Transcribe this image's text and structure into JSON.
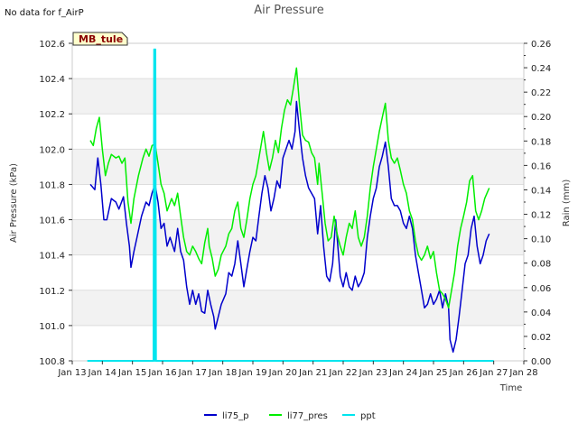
{
  "note": "No data for f_AirP",
  "station_label": "MB_tule",
  "chart_data": {
    "type": "line",
    "title": "Air Pressure",
    "xlabel": "Time",
    "ylabel": "Air Pressure (kPa)",
    "y2label": "Rain (mm)",
    "x_ticks": [
      "Jan 13",
      "Jan 14",
      "Jan 15",
      "Jan 16",
      "Jan 17",
      "Jan 18",
      "Jan 19",
      "Jan 20",
      "Jan 21",
      "Jan 22",
      "Jan 23",
      "Jan 24",
      "Jan 25",
      "Jan 26",
      "Jan 27",
      "Jan 28"
    ],
    "xlim": [
      13,
      28
    ],
    "ylim": [
      100.8,
      102.6
    ],
    "y_ticks": [
      "100.8",
      "101.0",
      "101.2",
      "101.4",
      "101.6",
      "101.8",
      "102.0",
      "102.2",
      "102.4",
      "102.6"
    ],
    "y2lim": [
      0,
      0.26
    ],
    "y2_ticks": [
      "0.00",
      "0.02",
      "0.04",
      "0.06",
      "0.08",
      "0.10",
      "0.12",
      "0.14",
      "0.16",
      "0.18",
      "0.20",
      "0.22",
      "0.24",
      "0.26"
    ],
    "grid": true,
    "legend_position": "bottom-center",
    "series": [
      {
        "name": "li75_p",
        "color": "#0000cc",
        "axis": "left",
        "points": [
          [
            13.6,
            101.8
          ],
          [
            13.75,
            101.77
          ],
          [
            13.85,
            101.95
          ],
          [
            13.95,
            101.8
          ],
          [
            14.05,
            101.6
          ],
          [
            14.15,
            101.6
          ],
          [
            14.3,
            101.72
          ],
          [
            14.45,
            101.7
          ],
          [
            14.55,
            101.66
          ],
          [
            14.7,
            101.73
          ],
          [
            14.8,
            101.58
          ],
          [
            14.9,
            101.45
          ],
          [
            14.95,
            101.33
          ],
          [
            15.05,
            101.42
          ],
          [
            15.15,
            101.5
          ],
          [
            15.3,
            101.62
          ],
          [
            15.45,
            101.7
          ],
          [
            15.55,
            101.68
          ],
          [
            15.65,
            101.75
          ],
          [
            15.75,
            101.8
          ],
          [
            15.85,
            101.7
          ],
          [
            15.95,
            101.55
          ],
          [
            16.05,
            101.58
          ],
          [
            16.15,
            101.45
          ],
          [
            16.25,
            101.5
          ],
          [
            16.4,
            101.42
          ],
          [
            16.5,
            101.55
          ],
          [
            16.6,
            101.42
          ],
          [
            16.7,
            101.37
          ],
          [
            16.8,
            101.22
          ],
          [
            16.9,
            101.12
          ],
          [
            17.0,
            101.2
          ],
          [
            17.1,
            101.12
          ],
          [
            17.2,
            101.18
          ],
          [
            17.3,
            101.08
          ],
          [
            17.4,
            101.07
          ],
          [
            17.5,
            101.2
          ],
          [
            17.6,
            101.12
          ],
          [
            17.7,
            101.05
          ],
          [
            17.75,
            100.98
          ],
          [
            17.85,
            101.05
          ],
          [
            17.95,
            101.12
          ],
          [
            18.1,
            101.18
          ],
          [
            18.2,
            101.3
          ],
          [
            18.3,
            101.28
          ],
          [
            18.4,
            101.35
          ],
          [
            18.5,
            101.48
          ],
          [
            18.6,
            101.35
          ],
          [
            18.7,
            101.22
          ],
          [
            18.8,
            101.32
          ],
          [
            18.9,
            101.42
          ],
          [
            19.0,
            101.5
          ],
          [
            19.1,
            101.48
          ],
          [
            19.2,
            101.62
          ],
          [
            19.3,
            101.75
          ],
          [
            19.4,
            101.85
          ],
          [
            19.5,
            101.78
          ],
          [
            19.6,
            101.65
          ],
          [
            19.7,
            101.72
          ],
          [
            19.8,
            101.82
          ],
          [
            19.9,
            101.78
          ],
          [
            20.0,
            101.95
          ],
          [
            20.1,
            102.0
          ],
          [
            20.2,
            102.05
          ],
          [
            20.3,
            102.0
          ],
          [
            20.4,
            102.1
          ],
          [
            20.45,
            102.27
          ],
          [
            20.55,
            102.1
          ],
          [
            20.65,
            101.95
          ],
          [
            20.75,
            101.85
          ],
          [
            20.85,
            101.78
          ],
          [
            20.95,
            101.75
          ],
          [
            21.05,
            101.72
          ],
          [
            21.15,
            101.52
          ],
          [
            21.25,
            101.68
          ],
          [
            21.35,
            101.45
          ],
          [
            21.45,
            101.28
          ],
          [
            21.55,
            101.25
          ],
          [
            21.65,
            101.35
          ],
          [
            21.75,
            101.6
          ],
          [
            21.8,
            101.5
          ],
          [
            21.9,
            101.28
          ],
          [
            22.0,
            101.22
          ],
          [
            22.1,
            101.3
          ],
          [
            22.2,
            101.22
          ],
          [
            22.3,
            101.2
          ],
          [
            22.4,
            101.28
          ],
          [
            22.5,
            101.22
          ],
          [
            22.6,
            101.25
          ],
          [
            22.7,
            101.3
          ],
          [
            22.8,
            101.5
          ],
          [
            22.9,
            101.62
          ],
          [
            23.0,
            101.72
          ],
          [
            23.1,
            101.78
          ],
          [
            23.2,
            101.9
          ],
          [
            23.3,
            101.96
          ],
          [
            23.4,
            102.04
          ],
          [
            23.5,
            101.9
          ],
          [
            23.6,
            101.72
          ],
          [
            23.7,
            101.68
          ],
          [
            23.8,
            101.68
          ],
          [
            23.9,
            101.65
          ],
          [
            24.0,
            101.58
          ],
          [
            24.1,
            101.55
          ],
          [
            24.2,
            101.62
          ],
          [
            24.3,
            101.55
          ],
          [
            24.4,
            101.4
          ],
          [
            24.5,
            101.3
          ],
          [
            24.6,
            101.2
          ],
          [
            24.7,
            101.1
          ],
          [
            24.8,
            101.12
          ],
          [
            24.9,
            101.18
          ],
          [
            25.0,
            101.12
          ],
          [
            25.1,
            101.15
          ],
          [
            25.2,
            101.2
          ],
          [
            25.3,
            101.1
          ],
          [
            25.4,
            101.18
          ],
          [
            25.5,
            101.1
          ],
          [
            25.55,
            100.92
          ],
          [
            25.65,
            100.85
          ],
          [
            25.75,
            100.92
          ],
          [
            25.85,
            101.05
          ],
          [
            25.95,
            101.2
          ],
          [
            26.05,
            101.35
          ],
          [
            26.15,
            101.4
          ],
          [
            26.25,
            101.55
          ],
          [
            26.35,
            101.62
          ],
          [
            26.45,
            101.45
          ],
          [
            26.55,
            101.35
          ],
          [
            26.65,
            101.4
          ],
          [
            26.75,
            101.48
          ],
          [
            26.85,
            101.52
          ]
        ]
      },
      {
        "name": "li77_pres",
        "color": "#00ee00",
        "axis": "left",
        "points": [
          [
            13.6,
            102.05
          ],
          [
            13.7,
            102.02
          ],
          [
            13.8,
            102.12
          ],
          [
            13.9,
            102.18
          ],
          [
            14.0,
            102.0
          ],
          [
            14.1,
            101.85
          ],
          [
            14.2,
            101.92
          ],
          [
            14.3,
            101.97
          ],
          [
            14.45,
            101.95
          ],
          [
            14.55,
            101.96
          ],
          [
            14.65,
            101.92
          ],
          [
            14.75,
            101.95
          ],
          [
            14.85,
            101.7
          ],
          [
            14.95,
            101.58
          ],
          [
            15.05,
            101.72
          ],
          [
            15.2,
            101.85
          ],
          [
            15.35,
            101.95
          ],
          [
            15.45,
            102.0
          ],
          [
            15.55,
            101.96
          ],
          [
            15.65,
            102.02
          ],
          [
            15.75,
            102.03
          ],
          [
            15.85,
            101.92
          ],
          [
            15.95,
            101.8
          ],
          [
            16.05,
            101.75
          ],
          [
            16.15,
            101.65
          ],
          [
            16.3,
            101.72
          ],
          [
            16.4,
            101.68
          ],
          [
            16.5,
            101.75
          ],
          [
            16.6,
            101.62
          ],
          [
            16.7,
            101.5
          ],
          [
            16.8,
            101.42
          ],
          [
            16.9,
            101.4
          ],
          [
            17.0,
            101.45
          ],
          [
            17.1,
            101.42
          ],
          [
            17.2,
            101.38
          ],
          [
            17.3,
            101.35
          ],
          [
            17.4,
            101.47
          ],
          [
            17.5,
            101.55
          ],
          [
            17.55,
            101.45
          ],
          [
            17.65,
            101.38
          ],
          [
            17.75,
            101.28
          ],
          [
            17.85,
            101.32
          ],
          [
            17.95,
            101.4
          ],
          [
            18.1,
            101.45
          ],
          [
            18.2,
            101.52
          ],
          [
            18.3,
            101.55
          ],
          [
            18.4,
            101.65
          ],
          [
            18.5,
            101.7
          ],
          [
            18.6,
            101.55
          ],
          [
            18.7,
            101.5
          ],
          [
            18.8,
            101.6
          ],
          [
            18.9,
            101.72
          ],
          [
            19.0,
            101.8
          ],
          [
            19.1,
            101.85
          ],
          [
            19.2,
            101.95
          ],
          [
            19.3,
            102.05
          ],
          [
            19.35,
            102.1
          ],
          [
            19.45,
            101.98
          ],
          [
            19.55,
            101.88
          ],
          [
            19.65,
            101.95
          ],
          [
            19.75,
            102.05
          ],
          [
            19.85,
            101.98
          ],
          [
            19.95,
            102.12
          ],
          [
            20.05,
            102.22
          ],
          [
            20.15,
            102.28
          ],
          [
            20.25,
            102.25
          ],
          [
            20.35,
            102.35
          ],
          [
            20.45,
            102.46
          ],
          [
            20.55,
            102.25
          ],
          [
            20.65,
            102.08
          ],
          [
            20.75,
            102.05
          ],
          [
            20.85,
            102.04
          ],
          [
            20.95,
            101.98
          ],
          [
            21.05,
            101.95
          ],
          [
            21.15,
            101.8
          ],
          [
            21.2,
            101.92
          ],
          [
            21.3,
            101.75
          ],
          [
            21.4,
            101.58
          ],
          [
            21.5,
            101.48
          ],
          [
            21.6,
            101.5
          ],
          [
            21.7,
            101.62
          ],
          [
            21.8,
            101.52
          ],
          [
            21.9,
            101.45
          ],
          [
            22.0,
            101.4
          ],
          [
            22.1,
            101.5
          ],
          [
            22.2,
            101.58
          ],
          [
            22.3,
            101.55
          ],
          [
            22.4,
            101.65
          ],
          [
            22.5,
            101.5
          ],
          [
            22.6,
            101.45
          ],
          [
            22.7,
            101.5
          ],
          [
            22.8,
            101.62
          ],
          [
            22.9,
            101.78
          ],
          [
            23.0,
            101.9
          ],
          [
            23.1,
            102.0
          ],
          [
            23.2,
            102.1
          ],
          [
            23.3,
            102.18
          ],
          [
            23.4,
            102.26
          ],
          [
            23.5,
            102.05
          ],
          [
            23.6,
            101.95
          ],
          [
            23.7,
            101.92
          ],
          [
            23.8,
            101.95
          ],
          [
            23.9,
            101.88
          ],
          [
            24.0,
            101.8
          ],
          [
            24.1,
            101.75
          ],
          [
            24.2,
            101.65
          ],
          [
            24.3,
            101.6
          ],
          [
            24.4,
            101.48
          ],
          [
            24.5,
            101.4
          ],
          [
            24.6,
            101.37
          ],
          [
            24.7,
            101.4
          ],
          [
            24.8,
            101.45
          ],
          [
            24.9,
            101.38
          ],
          [
            25.0,
            101.42
          ],
          [
            25.1,
            101.3
          ],
          [
            25.2,
            101.2
          ],
          [
            25.3,
            101.18
          ],
          [
            25.4,
            101.15
          ],
          [
            25.5,
            101.1
          ],
          [
            25.6,
            101.2
          ],
          [
            25.7,
            101.3
          ],
          [
            25.8,
            101.45
          ],
          [
            25.9,
            101.55
          ],
          [
            26.0,
            101.62
          ],
          [
            26.1,
            101.7
          ],
          [
            26.2,
            101.82
          ],
          [
            26.3,
            101.85
          ],
          [
            26.4,
            101.65
          ],
          [
            26.5,
            101.6
          ],
          [
            26.6,
            101.65
          ],
          [
            26.7,
            101.72
          ],
          [
            26.8,
            101.76
          ],
          [
            26.85,
            101.78
          ]
        ]
      },
      {
        "name": "ppt",
        "color": "#00e5ee",
        "axis": "right",
        "points": [
          [
            13.5,
            0
          ],
          [
            15.7,
            0
          ],
          [
            15.72,
            0.255
          ],
          [
            15.74,
            0
          ],
          [
            15.76,
            0.255
          ],
          [
            15.78,
            0
          ],
          [
            27.0,
            0
          ]
        ]
      }
    ]
  }
}
